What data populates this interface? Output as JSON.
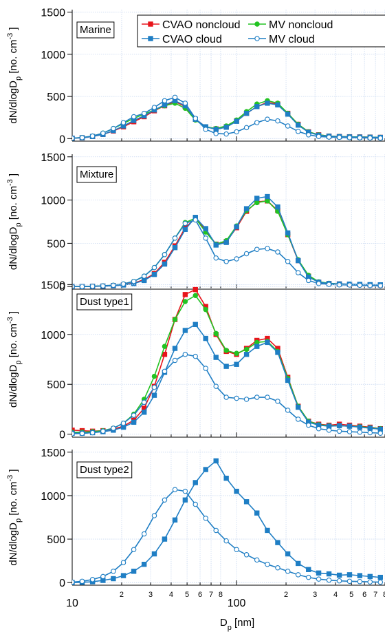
{
  "chart_data": [
    {
      "type": "line",
      "title": "Marine",
      "legend": "top-right",
      "grid": true,
      "ylabel": [
        "dN/dlogD",
        "p",
        " [no. cm",
        "-3",
        " ]"
      ],
      "xlim": [
        10,
        800
      ],
      "ylim": [
        -30,
        1530
      ],
      "yticks": [
        0,
        500,
        1000,
        1500
      ],
      "x": [
        10,
        11.5,
        13.3,
        15.4,
        17.8,
        20.5,
        23.7,
        27.4,
        31.6,
        36.5,
        42.2,
        48.7,
        56.2,
        64.9,
        75,
        86.6,
        100,
        115,
        133,
        154,
        178,
        205,
        237,
        274,
        316,
        365,
        422,
        487,
        562,
        649,
        750
      ],
      "series": [
        {
          "name": "CVAO noncloud",
          "color": "#e8141b",
          "marker": "square",
          "filled": true,
          "values": [
            5,
            10,
            25,
            50,
            90,
            140,
            200,
            260,
            330,
            390,
            440,
            380,
            230,
            140,
            115,
            140,
            210,
            300,
            380,
            430,
            410,
            300,
            170,
            80,
            45,
            30,
            25,
            22,
            20,
            18,
            15
          ]
        },
        {
          "name": "MV noncloud",
          "color": "#22c322",
          "marker": "circle",
          "filled": true,
          "values": [
            5,
            12,
            30,
            65,
            120,
            180,
            240,
            290,
            340,
            390,
            420,
            360,
            220,
            140,
            120,
            150,
            220,
            320,
            410,
            450,
            420,
            300,
            170,
            80,
            45,
            30,
            25,
            22,
            20,
            18,
            15
          ]
        },
        {
          "name": "CVAO cloud",
          "color": "#1f7ec4",
          "marker": "square",
          "filled": true,
          "values": [
            5,
            10,
            25,
            50,
            95,
            150,
            215,
            270,
            340,
            400,
            450,
            390,
            230,
            140,
            110,
            135,
            205,
            300,
            380,
            420,
            400,
            290,
            160,
            75,
            40,
            28,
            23,
            20,
            18,
            16,
            14
          ]
        },
        {
          "name": "MV cloud",
          "color": "#1f7ec4",
          "marker": "circle",
          "filled": false,
          "values": [
            5,
            12,
            30,
            65,
            120,
            190,
            260,
            300,
            370,
            450,
            490,
            420,
            240,
            110,
            60,
            55,
            80,
            130,
            190,
            230,
            210,
            150,
            85,
            45,
            25,
            18,
            15,
            12,
            10,
            8,
            6
          ]
        }
      ]
    },
    {
      "type": "line",
      "title": "Mixture",
      "grid": true,
      "ylabel": [
        "dN/dlogD",
        "p",
        " [no. cm",
        "-3",
        " ]"
      ],
      "xlim": [
        10,
        800
      ],
      "ylim": [
        -30,
        1530
      ],
      "yticks": [
        0,
        500,
        1000,
        1500
      ],
      "x": [
        10,
        11.5,
        13.3,
        15.4,
        17.8,
        20.5,
        23.7,
        27.4,
        31.6,
        36.5,
        42.2,
        48.7,
        56.2,
        64.9,
        75,
        86.6,
        100,
        115,
        133,
        154,
        178,
        205,
        237,
        274,
        316,
        365,
        422,
        487,
        562,
        649,
        750
      ],
      "series": [
        {
          "color": "#e8141b",
          "marker": "square",
          "filled": true,
          "values": [
            0,
            0,
            2,
            5,
            10,
            20,
            40,
            80,
            150,
            280,
            470,
            680,
            790,
            650,
            490,
            520,
            680,
            870,
            980,
            990,
            880,
            600,
            300,
            120,
            50,
            35,
            30,
            25,
            22,
            20,
            18
          ]
        },
        {
          "color": "#22c322",
          "marker": "circle",
          "filled": true,
          "values": [
            0,
            0,
            3,
            8,
            15,
            30,
            60,
            120,
            220,
            370,
            560,
            740,
            790,
            630,
            490,
            530,
            700,
            880,
            970,
            990,
            870,
            600,
            310,
            130,
            55,
            38,
            30,
            25,
            22,
            20,
            18
          ]
        },
        {
          "color": "#1f7ec4",
          "marker": "square",
          "filled": true,
          "values": [
            0,
            0,
            2,
            5,
            10,
            18,
            35,
            70,
            140,
            260,
            450,
            660,
            800,
            670,
            480,
            510,
            690,
            900,
            1020,
            1040,
            920,
            620,
            300,
            110,
            50,
            35,
            30,
            28,
            25,
            22,
            20
          ]
        },
        {
          "color": "#1f7ec4",
          "marker": "circle",
          "filled": false,
          "values": [
            0,
            0,
            3,
            8,
            15,
            30,
            60,
            120,
            220,
            370,
            560,
            730,
            770,
            560,
            330,
            290,
            320,
            380,
            430,
            440,
            400,
            290,
            160,
            70,
            35,
            25,
            20,
            18,
            15,
            12,
            10
          ]
        }
      ]
    },
    {
      "type": "line",
      "title": "Dust type1",
      "grid": true,
      "ylabel": [
        "dN/dlogD",
        "p",
        " [no. cm",
        "-3",
        " ]"
      ],
      "xlim": [
        10,
        800
      ],
      "ylim": [
        -30,
        1530
      ],
      "yticks": [
        0,
        500,
        1000,
        1500
      ],
      "x": [
        10,
        11.5,
        13.3,
        15.4,
        17.8,
        20.5,
        23.7,
        27.4,
        31.6,
        36.5,
        42.2,
        48.7,
        56.2,
        64.9,
        75,
        86.6,
        100,
        115,
        133,
        154,
        178,
        205,
        237,
        274,
        316,
        365,
        422,
        487,
        562,
        649,
        750
      ],
      "series": [
        {
          "color": "#e8141b",
          "marker": "square",
          "filled": true,
          "values": [
            40,
            35,
            30,
            35,
            50,
            80,
            140,
            260,
            480,
            800,
            1150,
            1400,
            1450,
            1280,
            1000,
            830,
            800,
            860,
            940,
            960,
            860,
            570,
            280,
            130,
            100,
            90,
            100,
            90,
            80,
            70,
            55
          ]
        },
        {
          "color": "#22c322",
          "marker": "circle",
          "filled": true,
          "values": [
            20,
            20,
            25,
            35,
            60,
            110,
            200,
            350,
            580,
            880,
            1150,
            1330,
            1390,
            1250,
            1010,
            840,
            810,
            850,
            920,
            930,
            830,
            560,
            280,
            130,
            95,
            85,
            85,
            80,
            75,
            65,
            55
          ]
        },
        {
          "color": "#1f7ec4",
          "marker": "square",
          "filled": true,
          "values": [
            10,
            10,
            15,
            25,
            40,
            70,
            120,
            220,
            390,
            620,
            860,
            1040,
            1100,
            960,
            770,
            680,
            700,
            800,
            880,
            920,
            820,
            540,
            270,
            120,
            90,
            80,
            85,
            80,
            70,
            60,
            50
          ]
        },
        {
          "color": "#1f7ec4",
          "marker": "circle",
          "filled": false,
          "values": [
            5,
            8,
            15,
            30,
            60,
            110,
            190,
            320,
            470,
            630,
            740,
            800,
            780,
            660,
            480,
            370,
            360,
            350,
            370,
            370,
            330,
            240,
            150,
            90,
            55,
            40,
            30,
            25,
            20,
            15,
            10
          ]
        }
      ]
    },
    {
      "type": "line",
      "title": "Dust type2",
      "grid": true,
      "ylabel": [
        "dN/dlogD",
        "p",
        " [no. cm",
        "-3",
        " ]"
      ],
      "xlabel": [
        "D",
        "p",
        " [nm]"
      ],
      "xscale": "log",
      "xlim": [
        10,
        800
      ],
      "ylim": [
        -30,
        1530
      ],
      "yticks": [
        0,
        500,
        1000,
        1500
      ],
      "xticks": [
        10,
        {
          "value": 20,
          "label": "2"
        },
        {
          "value": 30,
          "label": "3"
        },
        {
          "value": 40,
          "label": "4"
        },
        {
          "value": 50,
          "label": "5"
        },
        {
          "value": 60,
          "label": "6"
        },
        {
          "value": 70,
          "label": "7"
        },
        {
          "value": 80,
          "label": "8"
        },
        100,
        {
          "value": 200,
          "label": "2"
        },
        {
          "value": 300,
          "label": "3"
        },
        {
          "value": 400,
          "label": "4"
        },
        {
          "value": 500,
          "label": "5"
        },
        {
          "value": 600,
          "label": "6"
        },
        {
          "value": 700,
          "label": "7"
        },
        {
          "value": 800,
          "label": "8"
        }
      ],
      "x": [
        10,
        11.5,
        13.3,
        15.4,
        17.8,
        20.5,
        23.7,
        27.4,
        31.6,
        36.5,
        42.2,
        48.7,
        56.2,
        64.9,
        75,
        86.6,
        100,
        115,
        133,
        154,
        178,
        205,
        237,
        274,
        316,
        365,
        422,
        487,
        562,
        649,
        750
      ],
      "series": [
        {
          "color": "#1f7ec4",
          "marker": "square",
          "filled": true,
          "values": [
            0,
            3,
            10,
            25,
            45,
            80,
            130,
            210,
            330,
            500,
            720,
            950,
            1150,
            1300,
            1400,
            1200,
            1050,
            930,
            800,
            600,
            460,
            330,
            220,
            150,
            110,
            100,
            85,
            90,
            80,
            70,
            60
          ]
        },
        {
          "color": "#1f7ec4",
          "marker": "circle",
          "filled": false,
          "values": [
            5,
            15,
            35,
            70,
            130,
            230,
            380,
            560,
            770,
            950,
            1070,
            1050,
            900,
            740,
            600,
            480,
            380,
            320,
            260,
            210,
            170,
            130,
            90,
            60,
            40,
            28,
            20,
            15,
            12,
            8,
            5
          ]
        }
      ]
    }
  ]
}
